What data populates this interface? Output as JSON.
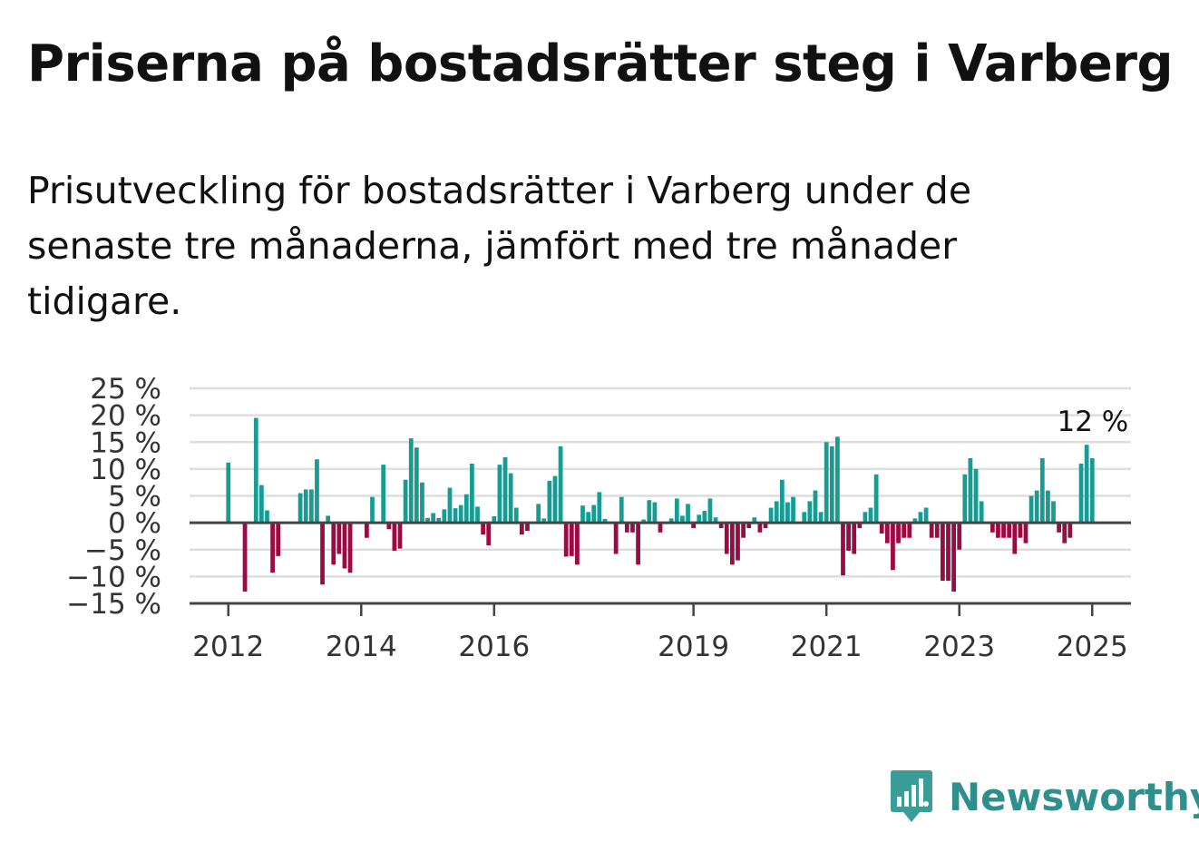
{
  "title": "Priserna på bostadsrätter steg i Varberg",
  "subtitle": "Prisutveckling för bostadsrätter i Varberg under de senaste tre månaderna, jämfört med tre månader tidigare.",
  "brand": {
    "name": "Newsworthy",
    "color": "#2f8f8c"
  },
  "colors": {
    "positive": "#179c93",
    "negative": "#9b0a43",
    "grid": "#dddddd",
    "axis": "#444444",
    "zero": "#444444"
  },
  "chart_data": {
    "type": "bar",
    "ylim": [
      -15,
      25
    ],
    "yticks": [
      {
        "value": 25,
        "label": "25 %"
      },
      {
        "value": 20,
        "label": "20 %"
      },
      {
        "value": 15,
        "label": "15 %"
      },
      {
        "value": 10,
        "label": "10 %"
      },
      {
        "value": 5,
        "label": "5 %"
      },
      {
        "value": 0,
        "label": "0 %"
      },
      {
        "value": -5,
        "label": "−5 %"
      },
      {
        "value": -10,
        "label": "−10 %"
      },
      {
        "value": -15,
        "label": "−15 %"
      }
    ],
    "xticks": [
      {
        "date": "2012-01",
        "label": "2012"
      },
      {
        "date": "2014-01",
        "label": "2014"
      },
      {
        "date": "2016-01",
        "label": "2016"
      },
      {
        "date": "2019-01",
        "label": "2019"
      },
      {
        "date": "2021-01",
        "label": "2021"
      },
      {
        "date": "2023-01",
        "label": "2023"
      },
      {
        "date": "2025-01",
        "label": "2025"
      }
    ],
    "x_range": [
      "2011-06",
      "2025-08"
    ],
    "grid": true,
    "annotation": {
      "label": "12 %",
      "value": 12
    },
    "bars": [
      {
        "date": "2012-01",
        "value": 11.2
      },
      {
        "date": "2012-04",
        "value": -12.8
      },
      {
        "date": "2012-06",
        "value": 19.5
      },
      {
        "date": "2012-07",
        "value": 7.0
      },
      {
        "date": "2012-08",
        "value": 2.3
      },
      {
        "date": "2012-09",
        "value": -9.3
      },
      {
        "date": "2012-10",
        "value": -6.2
      },
      {
        "date": "2013-02",
        "value": 5.5
      },
      {
        "date": "2013-03",
        "value": 6.2
      },
      {
        "date": "2013-04",
        "value": 6.2
      },
      {
        "date": "2013-05",
        "value": 11.8
      },
      {
        "date": "2013-06",
        "value": -11.5
      },
      {
        "date": "2013-07",
        "value": 1.3
      },
      {
        "date": "2013-08",
        "value": -7.8
      },
      {
        "date": "2013-09",
        "value": -5.8
      },
      {
        "date": "2013-10",
        "value": -8.5
      },
      {
        "date": "2013-11",
        "value": -9.3
      },
      {
        "date": "2014-02",
        "value": -2.8
      },
      {
        "date": "2014-03",
        "value": 4.8
      },
      {
        "date": "2014-05",
        "value": 10.8
      },
      {
        "date": "2014-06",
        "value": -1.2
      },
      {
        "date": "2014-07",
        "value": -5.2
      },
      {
        "date": "2014-08",
        "value": -4.8
      },
      {
        "date": "2014-09",
        "value": 8.0
      },
      {
        "date": "2014-10",
        "value": 15.7
      },
      {
        "date": "2014-11",
        "value": 14.0
      },
      {
        "date": "2014-12",
        "value": 7.5
      },
      {
        "date": "2015-01",
        "value": 0.9
      },
      {
        "date": "2015-02",
        "value": 1.8
      },
      {
        "date": "2015-03",
        "value": 0.9
      },
      {
        "date": "2015-04",
        "value": 2.5
      },
      {
        "date": "2015-05",
        "value": 6.5
      },
      {
        "date": "2015-06",
        "value": 2.7
      },
      {
        "date": "2015-07",
        "value": 3.3
      },
      {
        "date": "2015-08",
        "value": 5.3
      },
      {
        "date": "2015-09",
        "value": 11.0
      },
      {
        "date": "2015-10",
        "value": 3.0
      },
      {
        "date": "2015-11",
        "value": -2.2
      },
      {
        "date": "2015-12",
        "value": -4.2
      },
      {
        "date": "2016-01",
        "value": 1.2
      },
      {
        "date": "2016-02",
        "value": 10.8
      },
      {
        "date": "2016-03",
        "value": 12.2
      },
      {
        "date": "2016-04",
        "value": 9.2
      },
      {
        "date": "2016-05",
        "value": 2.8
      },
      {
        "date": "2016-06",
        "value": -2.2
      },
      {
        "date": "2016-07",
        "value": -1.5
      },
      {
        "date": "2016-09",
        "value": 3.5
      },
      {
        "date": "2016-10",
        "value": 0.8
      },
      {
        "date": "2016-11",
        "value": 7.8
      },
      {
        "date": "2016-12",
        "value": 8.7
      },
      {
        "date": "2017-01",
        "value": 14.2
      },
      {
        "date": "2017-02",
        "value": -6.3
      },
      {
        "date": "2017-03",
        "value": -6.2
      },
      {
        "date": "2017-04",
        "value": -7.8
      },
      {
        "date": "2017-05",
        "value": 3.2
      },
      {
        "date": "2017-06",
        "value": 2.0
      },
      {
        "date": "2017-07",
        "value": 3.3
      },
      {
        "date": "2017-08",
        "value": 5.7
      },
      {
        "date": "2017-09",
        "value": 0.7
      },
      {
        "date": "2017-11",
        "value": -5.8
      },
      {
        "date": "2017-12",
        "value": 4.8
      },
      {
        "date": "2018-01",
        "value": -1.8
      },
      {
        "date": "2018-02",
        "value": -1.8
      },
      {
        "date": "2018-03",
        "value": -7.8
      },
      {
        "date": "2018-04",
        "value": 0.6
      },
      {
        "date": "2018-05",
        "value": 4.2
      },
      {
        "date": "2018-06",
        "value": 3.8
      },
      {
        "date": "2018-07",
        "value": -1.8
      },
      {
        "date": "2018-09",
        "value": 0.8
      },
      {
        "date": "2018-10",
        "value": 4.5
      },
      {
        "date": "2018-11",
        "value": 1.3
      },
      {
        "date": "2018-12",
        "value": 3.5
      },
      {
        "date": "2019-01",
        "value": -1.0
      },
      {
        "date": "2019-02",
        "value": 1.5
      },
      {
        "date": "2019-03",
        "value": 2.2
      },
      {
        "date": "2019-04",
        "value": 4.5
      },
      {
        "date": "2019-05",
        "value": 1.0
      },
      {
        "date": "2019-06",
        "value": -1.0
      },
      {
        "date": "2019-07",
        "value": -5.8
      },
      {
        "date": "2019-08",
        "value": -7.8
      },
      {
        "date": "2019-09",
        "value": -7.0
      },
      {
        "date": "2019-10",
        "value": -2.8
      },
      {
        "date": "2019-11",
        "value": -1.0
      },
      {
        "date": "2019-12",
        "value": 1.0
      },
      {
        "date": "2020-01",
        "value": -1.8
      },
      {
        "date": "2020-02",
        "value": -1.0
      },
      {
        "date": "2020-03",
        "value": 2.8
      },
      {
        "date": "2020-04",
        "value": 4.0
      },
      {
        "date": "2020-05",
        "value": 8.0
      },
      {
        "date": "2020-06",
        "value": 3.8
      },
      {
        "date": "2020-07",
        "value": 4.8
      },
      {
        "date": "2020-09",
        "value": 2.0
      },
      {
        "date": "2020-10",
        "value": 4.0
      },
      {
        "date": "2020-11",
        "value": 6.0
      },
      {
        "date": "2020-12",
        "value": 2.0
      },
      {
        "date": "2021-01",
        "value": 15.0
      },
      {
        "date": "2021-02",
        "value": 14.2
      },
      {
        "date": "2021-03",
        "value": 16.0
      },
      {
        "date": "2021-04",
        "value": -9.8
      },
      {
        "date": "2021-05",
        "value": -5.2
      },
      {
        "date": "2021-06",
        "value": -5.8
      },
      {
        "date": "2021-07",
        "value": -1.0
      },
      {
        "date": "2021-08",
        "value": 2.0
      },
      {
        "date": "2021-09",
        "value": 2.8
      },
      {
        "date": "2021-10",
        "value": 9.0
      },
      {
        "date": "2021-11",
        "value": -2.0
      },
      {
        "date": "2021-12",
        "value": -3.8
      },
      {
        "date": "2022-01",
        "value": -8.8
      },
      {
        "date": "2022-02",
        "value": -3.8
      },
      {
        "date": "2022-03",
        "value": -2.8
      },
      {
        "date": "2022-04",
        "value": -2.8
      },
      {
        "date": "2022-05",
        "value": 0.8
      },
      {
        "date": "2022-06",
        "value": 2.0
      },
      {
        "date": "2022-07",
        "value": 2.8
      },
      {
        "date": "2022-08",
        "value": -2.8
      },
      {
        "date": "2022-09",
        "value": -2.8
      },
      {
        "date": "2022-10",
        "value": -10.8
      },
      {
        "date": "2022-11",
        "value": -10.8
      },
      {
        "date": "2022-12",
        "value": -12.8
      },
      {
        "date": "2023-01",
        "value": -5.0
      },
      {
        "date": "2023-02",
        "value": 9.0
      },
      {
        "date": "2023-03",
        "value": 12.0
      },
      {
        "date": "2023-04",
        "value": 10.0
      },
      {
        "date": "2023-05",
        "value": 4.0
      },
      {
        "date": "2023-07",
        "value": -1.8
      },
      {
        "date": "2023-08",
        "value": -2.8
      },
      {
        "date": "2023-09",
        "value": -2.8
      },
      {
        "date": "2023-10",
        "value": -2.8
      },
      {
        "date": "2023-11",
        "value": -5.8
      },
      {
        "date": "2023-12",
        "value": -2.8
      },
      {
        "date": "2024-01",
        "value": -3.8
      },
      {
        "date": "2024-02",
        "value": 5.0
      },
      {
        "date": "2024-03",
        "value": 6.0
      },
      {
        "date": "2024-04",
        "value": 12.0
      },
      {
        "date": "2024-05",
        "value": 6.0
      },
      {
        "date": "2024-06",
        "value": 4.0
      },
      {
        "date": "2024-07",
        "value": -1.8
      },
      {
        "date": "2024-08",
        "value": -3.8
      },
      {
        "date": "2024-09",
        "value": -2.8
      },
      {
        "date": "2024-11",
        "value": 11.0
      },
      {
        "date": "2024-12",
        "value": 14.5
      },
      {
        "date": "2025-01",
        "value": 12.0
      }
    ]
  }
}
